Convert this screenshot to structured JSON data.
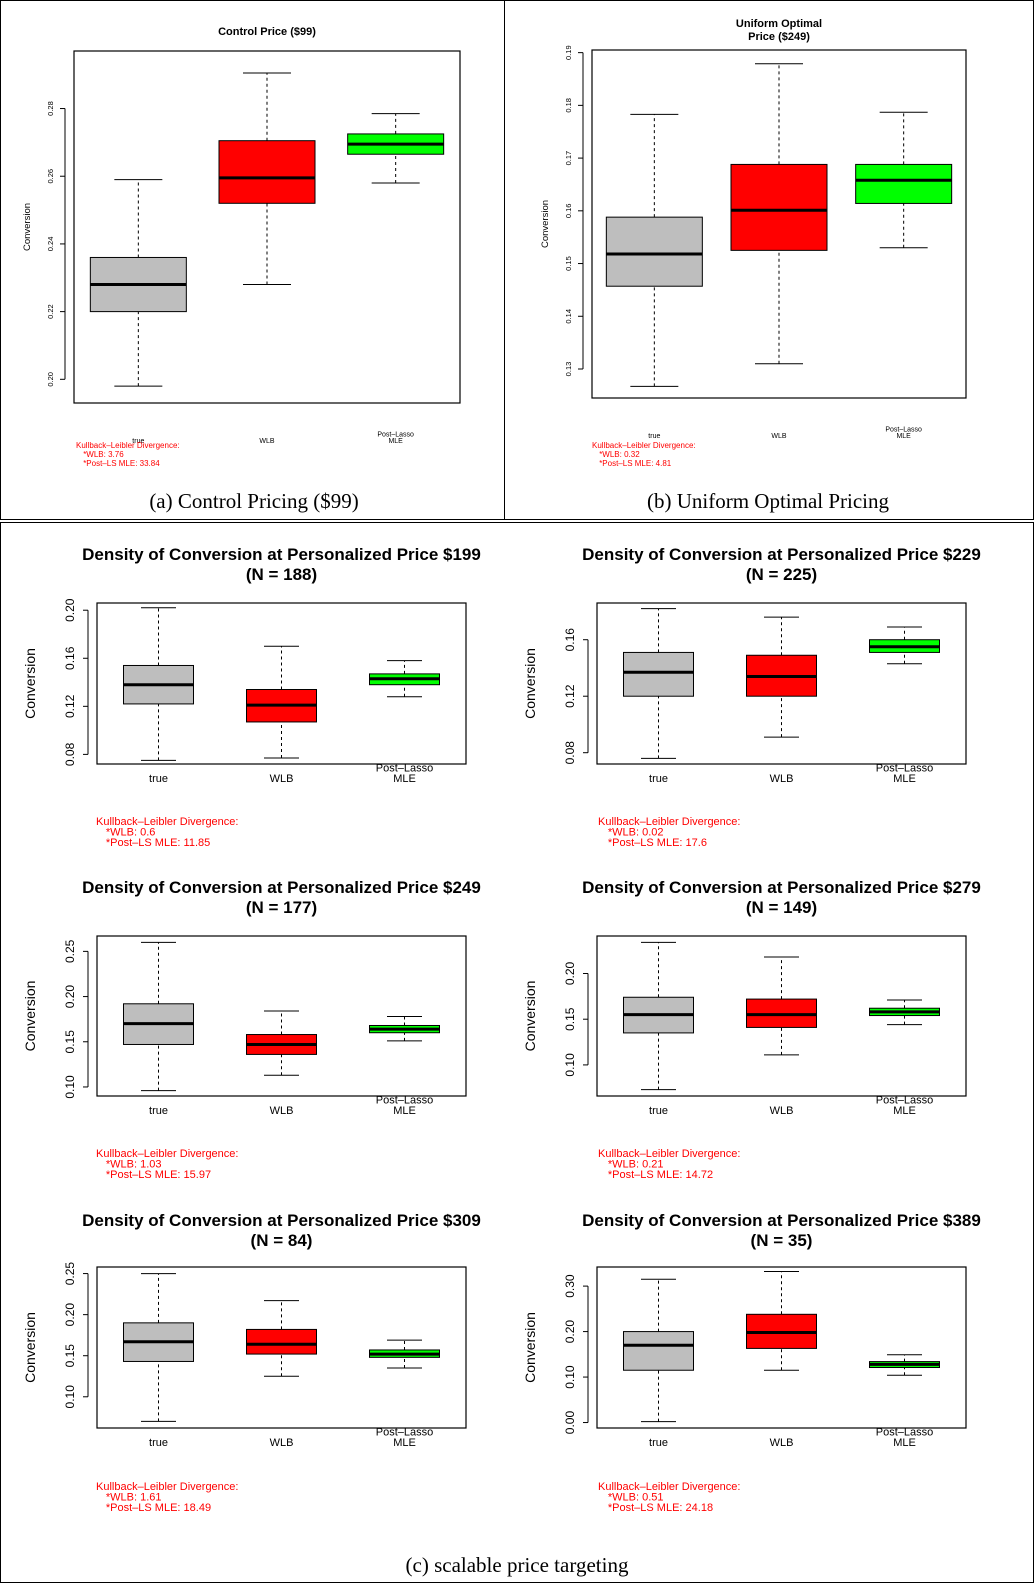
{
  "captions": {
    "a": "(a) Control Pricing ($99)",
    "b": "(b) Uniform Optimal Pricing",
    "c": "(c) scalable price targeting"
  },
  "colors": {
    "true": "#bebebe",
    "WLB": "#ff0000",
    "MLE": "#00ff00",
    "kl_text": "#ff0000"
  },
  "chart_data": [
    {
      "type": "box",
      "title": [
        "Control Price ($99)"
      ],
      "ylabel": "Conversion",
      "categories": [
        "true",
        "WLB",
        "Post–Lasso MLE"
      ],
      "ylim": [
        0.193,
        0.297
      ],
      "yticks": [
        "0.20",
        "0.22",
        "0.24",
        "0.26",
        "0.28"
      ],
      "yticks_values": [
        0.2,
        0.22,
        0.24,
        0.26,
        0.28
      ],
      "boxes": [
        {
          "name": "true",
          "whisker_low": 0.198,
          "q1": 0.22,
          "median": 0.228,
          "q3": 0.236,
          "whisker_high": 0.259
        },
        {
          "name": "WLB",
          "whisker_low": 0.228,
          "q1": 0.252,
          "median": 0.2595,
          "q3": 0.2705,
          "whisker_high": 0.2905
        },
        {
          "name": "Post–Lasso MLE",
          "whisker_low": 0.258,
          "q1": 0.2665,
          "median": 0.2695,
          "q3": 0.2725,
          "whisker_high": 0.2785
        }
      ],
      "kl": {
        "heading": "Kullback–Leibler Divergence:",
        "wlb": "*WLB: 3.76",
        "mle": "*Post–LS MLE: 33.84"
      }
    },
    {
      "type": "box",
      "title": [
        "Uniform Optimal",
        "Price ($249)"
      ],
      "ylabel": "Conversion",
      "categories": [
        "true",
        "WLB",
        "Post–Lasso MLE"
      ],
      "ylim": [
        0.1245,
        0.1905
      ],
      "yticks": [
        "0.13",
        "0.14",
        "0.15",
        "0.16",
        "0.17",
        "0.18",
        "0.19"
      ],
      "yticks_values": [
        0.13,
        0.14,
        0.15,
        0.16,
        0.17,
        0.18,
        0.19
      ],
      "boxes": [
        {
          "name": "true",
          "whisker_low": 0.1267,
          "q1": 0.1457,
          "median": 0.1518,
          "q3": 0.1588,
          "whisker_high": 0.1783
        },
        {
          "name": "WLB",
          "whisker_low": 0.131,
          "q1": 0.1525,
          "median": 0.1601,
          "q3": 0.1688,
          "whisker_high": 0.1879
        },
        {
          "name": "Post–Lasso MLE",
          "whisker_low": 0.153,
          "q1": 0.1614,
          "median": 0.1658,
          "q3": 0.1688,
          "whisker_high": 0.1787
        }
      ],
      "kl": {
        "heading": "Kullback–Leibler Divergence:",
        "wlb": "*WLB: 0.32",
        "mle": "*Post–LS MLE: 4.81"
      }
    },
    {
      "type": "box",
      "title": [
        "Density of Conversion at Personalized Price $199",
        "(N = 188)"
      ],
      "ylabel": "Conversion",
      "categories": [
        "true",
        "WLB",
        "Post–Lasso MLE"
      ],
      "ylim": [
        0.072,
        0.206
      ],
      "yticks": [
        "0.08",
        "0.12",
        "0.16",
        "0.20"
      ],
      "yticks_values": [
        0.08,
        0.12,
        0.16,
        0.2
      ],
      "boxes": [
        {
          "name": "true",
          "whisker_low": 0.075,
          "q1": 0.122,
          "median": 0.138,
          "q3": 0.154,
          "whisker_high": 0.202
        },
        {
          "name": "WLB",
          "whisker_low": 0.077,
          "q1": 0.107,
          "median": 0.121,
          "q3": 0.134,
          "whisker_high": 0.17
        },
        {
          "name": "Post–Lasso MLE",
          "whisker_low": 0.128,
          "q1": 0.138,
          "median": 0.143,
          "q3": 0.147,
          "whisker_high": 0.158
        }
      ],
      "kl": {
        "heading": "Kullback–Leibler Divergence:",
        "wlb": "*WLB: 0.6",
        "mle": "*Post–LS MLE: 11.85"
      }
    },
    {
      "type": "box",
      "title": [
        "Density of Conversion at Personalized Price $229",
        "(N = 225)"
      ],
      "ylabel": "Conversion",
      "categories": [
        "true",
        "WLB",
        "Post–Lasso MLE"
      ],
      "ylim": [
        0.072,
        0.186
      ],
      "yticks": [
        "0.08",
        "0.12",
        "0.16"
      ],
      "yticks_values": [
        0.08,
        0.12,
        0.16
      ],
      "boxes": [
        {
          "name": "true",
          "whisker_low": 0.076,
          "q1": 0.12,
          "median": 0.137,
          "q3": 0.151,
          "whisker_high": 0.182
        },
        {
          "name": "WLB",
          "whisker_low": 0.091,
          "q1": 0.12,
          "median": 0.134,
          "q3": 0.149,
          "whisker_high": 0.176
        },
        {
          "name": "Post–Lasso MLE",
          "whisker_low": 0.143,
          "q1": 0.151,
          "median": 0.155,
          "q3": 0.16,
          "whisker_high": 0.169
        }
      ],
      "kl": {
        "heading": "Kullback–Leibler Divergence:",
        "wlb": "*WLB: 0.02",
        "mle": "*Post–LS MLE: 17.6"
      }
    },
    {
      "type": "box",
      "title": [
        "Density of Conversion at Personalized Price $249",
        "(N = 177)"
      ],
      "ylabel": "Conversion",
      "categories": [
        "true",
        "WLB",
        "Post–Lasso MLE"
      ],
      "ylim": [
        0.09,
        0.267
      ],
      "yticks": [
        "0.10",
        "0.15",
        "0.20",
        "0.25"
      ],
      "yticks_values": [
        0.1,
        0.15,
        0.2,
        0.25
      ],
      "boxes": [
        {
          "name": "true",
          "whisker_low": 0.096,
          "q1": 0.147,
          "median": 0.17,
          "q3": 0.192,
          "whisker_high": 0.26
        },
        {
          "name": "WLB",
          "whisker_low": 0.113,
          "q1": 0.136,
          "median": 0.147,
          "q3": 0.158,
          "whisker_high": 0.184
        },
        {
          "name": "Post–Lasso MLE",
          "whisker_low": 0.151,
          "q1": 0.16,
          "median": 0.164,
          "q3": 0.168,
          "whisker_high": 0.178
        }
      ],
      "kl": {
        "heading": "Kullback–Leibler Divergence:",
        "wlb": "*WLB: 1.03",
        "mle": "*Post–LS MLE: 15.97"
      }
    },
    {
      "type": "box",
      "title": [
        "Density of Conversion at Personalized Price $279",
        "(N = 149)"
      ],
      "ylabel": "Conversion",
      "categories": [
        "true",
        "WLB",
        "Post–Lasso MLE"
      ],
      "ylim": [
        0.066,
        0.241
      ],
      "yticks": [
        "0.10",
        "0.15",
        "0.20"
      ],
      "yticks_values": [
        0.1,
        0.15,
        0.2
      ],
      "boxes": [
        {
          "name": "true",
          "whisker_low": 0.073,
          "q1": 0.135,
          "median": 0.155,
          "q3": 0.174,
          "whisker_high": 0.234
        },
        {
          "name": "WLB",
          "whisker_low": 0.111,
          "q1": 0.141,
          "median": 0.155,
          "q3": 0.172,
          "whisker_high": 0.218
        },
        {
          "name": "Post–Lasso MLE",
          "whisker_low": 0.144,
          "q1": 0.154,
          "median": 0.158,
          "q3": 0.162,
          "whisker_high": 0.171
        }
      ],
      "kl": {
        "heading": "Kullback–Leibler Divergence:",
        "wlb": "*WLB: 0.21",
        "mle": "*Post–LS MLE: 14.72"
      }
    },
    {
      "type": "box",
      "title": [
        "Density of Conversion at Personalized Price $309",
        "(N = 84)"
      ],
      "ylabel": "Conversion",
      "categories": [
        "true",
        "WLB",
        "Post–Lasso MLE"
      ],
      "ylim": [
        0.062,
        0.258
      ],
      "yticks": [
        "0.10",
        "0.15",
        "0.20",
        "0.25"
      ],
      "yticks_values": [
        0.1,
        0.15,
        0.2,
        0.25
      ],
      "boxes": [
        {
          "name": "true",
          "whisker_low": 0.07,
          "q1": 0.143,
          "median": 0.167,
          "q3": 0.19,
          "whisker_high": 0.25
        },
        {
          "name": "WLB",
          "whisker_low": 0.125,
          "q1": 0.152,
          "median": 0.164,
          "q3": 0.182,
          "whisker_high": 0.217
        },
        {
          "name": "Post–Lasso MLE",
          "whisker_low": 0.135,
          "q1": 0.148,
          "median": 0.152,
          "q3": 0.157,
          "whisker_high": 0.169
        }
      ],
      "kl": {
        "heading": "Kullback–Leibler Divergence:",
        "wlb": "*WLB: 1.61",
        "mle": "*Post–LS MLE: 18.49"
      }
    },
    {
      "type": "box",
      "title": [
        "Density of Conversion at Personalized Price $389",
        "(N = 35)"
      ],
      "ylabel": "Conversion",
      "categories": [
        "true",
        "WLB",
        "Post–Lasso MLE"
      ],
      "ylim": [
        -0.012,
        0.342
      ],
      "yticks": [
        "0.00",
        "0.10",
        "0.20",
        "0.30"
      ],
      "yticks_values": [
        0.0,
        0.1,
        0.2,
        0.3
      ],
      "boxes": [
        {
          "name": "true",
          "whisker_low": 0.002,
          "q1": 0.115,
          "median": 0.17,
          "q3": 0.2,
          "whisker_high": 0.315
        },
        {
          "name": "WLB",
          "whisker_low": 0.115,
          "q1": 0.163,
          "median": 0.198,
          "q3": 0.238,
          "whisker_high": 0.332
        },
        {
          "name": "Post–Lasso MLE",
          "whisker_low": 0.104,
          "q1": 0.121,
          "median": 0.128,
          "q3": 0.134,
          "whisker_high": 0.149
        }
      ],
      "kl": {
        "heading": "Kullback–Leibler Divergence:",
        "wlb": "*WLB: 0.51",
        "mle": "*Post–LS MLE: 24.18"
      }
    }
  ]
}
